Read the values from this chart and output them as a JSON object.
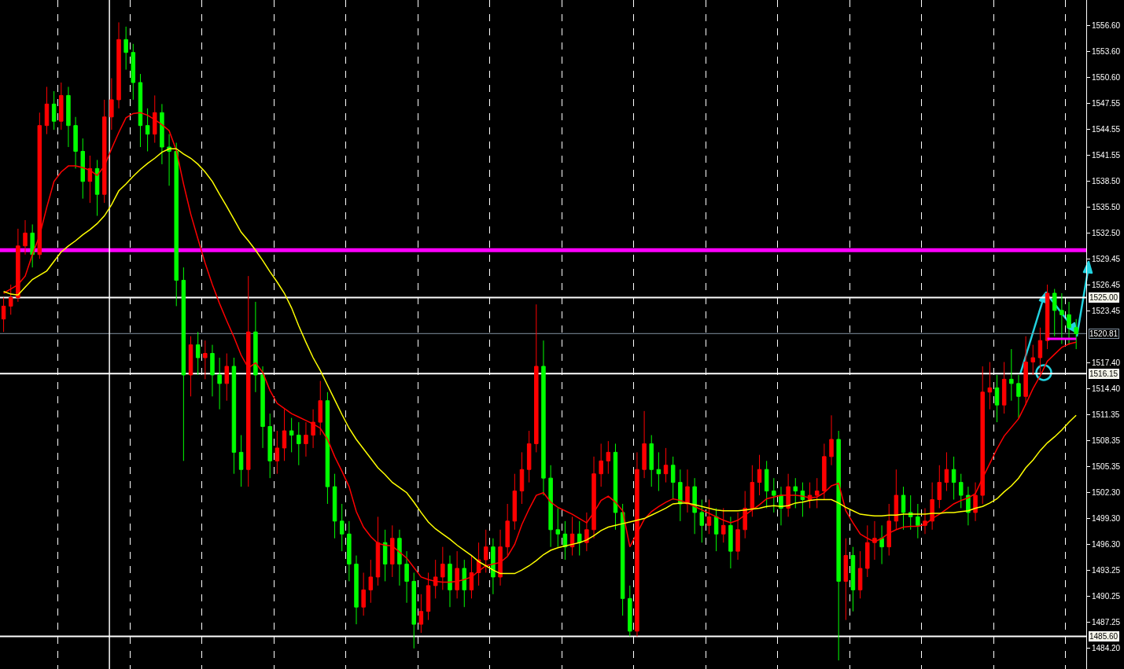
{
  "chart_data": {
    "type": "candlestick",
    "categories": [
      null,
      null,
      null,
      null,
      null,
      null,
      null,
      null,
      null,
      null,
      null,
      null,
      null,
      null,
      null,
      null,
      null,
      null,
      null,
      null,
      null,
      null,
      null,
      null,
      null,
      null,
      null,
      null,
      null,
      null,
      null,
      null,
      null,
      null,
      null,
      null,
      null,
      null,
      null,
      null,
      null,
      null,
      null,
      null,
      null,
      null,
      null,
      null,
      null,
      null,
      null,
      null,
      null,
      null,
      null,
      null,
      null,
      null,
      null,
      null,
      null,
      null,
      null,
      null,
      null,
      null,
      null,
      null,
      null,
      null,
      null,
      null,
      null,
      null,
      null,
      null,
      null,
      null,
      null,
      null,
      null,
      null,
      null,
      null,
      null,
      null,
      null,
      null,
      null,
      null,
      null,
      null,
      null,
      null,
      null,
      null,
      null,
      null,
      null,
      null,
      null,
      null,
      null,
      null,
      null,
      null,
      null,
      null,
      null,
      null,
      null,
      null,
      null,
      null,
      null,
      null,
      null,
      null,
      null,
      null,
      null,
      null,
      null,
      null,
      null,
      null,
      null,
      null,
      null,
      null,
      null,
      null,
      null,
      null,
      null,
      null,
      null,
      null,
      null,
      null,
      null,
      null,
      null,
      null,
      null,
      null,
      null,
      null,
      null,
      null
    ],
    "ohlc": [
      [
        1522.5,
        1525.0,
        1521.0,
        1524.0
      ],
      [
        1524.0,
        1526.5,
        1523.0,
        1525.0
      ],
      [
        1525.0,
        1533.0,
        1524.5,
        1531.0
      ],
      [
        1531.0,
        1534.0,
        1530.0,
        1532.5
      ],
      [
        1532.5,
        1533.5,
        1528.5,
        1530.0
      ],
      [
        1530.0,
        1546.5,
        1529.5,
        1545.0
      ],
      [
        1545.0,
        1549.5,
        1544.0,
        1547.5
      ],
      [
        1547.5,
        1549.0,
        1544.5,
        1545.5
      ],
      [
        1545.5,
        1550.0,
        1544.5,
        1548.5
      ],
      [
        1548.5,
        1549.5,
        1542.5,
        1545.0
      ],
      [
        1545.0,
        1546.0,
        1540.0,
        1542.0
      ],
      [
        1542.0,
        1543.5,
        1536.5,
        1538.5
      ],
      [
        1538.5,
        1541.5,
        1536.0,
        1540.0
      ],
      [
        1540.0,
        1541.0,
        1534.5,
        1537.0
      ],
      [
        1537.0,
        1548.0,
        1536.0,
        1546.0
      ],
      [
        1546.0,
        1550.5,
        1544.5,
        1548.0
      ],
      [
        1548.0,
        1557.0,
        1547.0,
        1555.0
      ],
      [
        1555.0,
        1556.5,
        1551.5,
        1553.5
      ],
      [
        1553.5,
        1554.5,
        1548.0,
        1550.0
      ],
      [
        1550.0,
        1551.0,
        1542.5,
        1545.0
      ],
      [
        1545.0,
        1547.0,
        1542.0,
        1544.0
      ],
      [
        1544.0,
        1548.5,
        1543.0,
        1546.5
      ],
      [
        1546.5,
        1547.5,
        1540.5,
        1542.5
      ],
      [
        1542.5,
        1544.0,
        1538.0,
        1542.0
      ],
      [
        1542.0,
        1543.0,
        1524.0,
        1527.0
      ],
      [
        1527.0,
        1528.5,
        1506.0,
        1516.0
      ],
      [
        1516.0,
        1520.5,
        1513.5,
        1519.5
      ],
      [
        1519.5,
        1521.0,
        1516.0,
        1518.0
      ],
      [
        1518.0,
        1520.0,
        1515.5,
        1518.5
      ],
      [
        1518.5,
        1519.5,
        1513.5,
        1516.0
      ],
      [
        1516.0,
        1518.0,
        1512.0,
        1515.0
      ],
      [
        1515.0,
        1518.5,
        1513.0,
        1517.0
      ],
      [
        1517.0,
        1518.0,
        1504.5,
        1507.0
      ],
      [
        1507.0,
        1509.0,
        1503.0,
        1505.0
      ],
      [
        1505.0,
        1527.5,
        1503.0,
        1521.0
      ],
      [
        1521.0,
        1524.5,
        1514.0,
        1516.0
      ],
      [
        1516.0,
        1517.0,
        1507.5,
        1510.0
      ],
      [
        1510.0,
        1511.5,
        1504.0,
        1506.0
      ],
      [
        1506.0,
        1509.5,
        1504.5,
        1507.5
      ],
      [
        1507.5,
        1512.0,
        1506.0,
        1509.5
      ],
      [
        1509.5,
        1511.0,
        1507.0,
        1509.0
      ],
      [
        1509.0,
        1510.5,
        1505.5,
        1508.0
      ],
      [
        1508.0,
        1510.5,
        1506.5,
        1509.0
      ],
      [
        1509.0,
        1512.0,
        1507.5,
        1510.5
      ],
      [
        1510.5,
        1515.3,
        1509.0,
        1513.0
      ],
      [
        1513.0,
        1514.0,
        1501.0,
        1503.0
      ],
      [
        1503.0,
        1504.5,
        1497.0,
        1499.0
      ],
      [
        1499.0,
        1501.0,
        1495.5,
        1497.5
      ],
      [
        1497.5,
        1499.0,
        1492.0,
        1494.0
      ],
      [
        1494.0,
        1495.0,
        1487.0,
        1489.0
      ],
      [
        1489.0,
        1493.0,
        1488.0,
        1491.0
      ],
      [
        1491.0,
        1494.5,
        1489.5,
        1492.5
      ],
      [
        1492.5,
        1499.5,
        1491.5,
        1496.5
      ],
      [
        1496.5,
        1498.0,
        1492.0,
        1494.0
      ],
      [
        1494.0,
        1498.5,
        1492.5,
        1497.0
      ],
      [
        1497.0,
        1498.0,
        1491.5,
        1494.0
      ],
      [
        1494.0,
        1495.5,
        1489.5,
        1492.0
      ],
      [
        1492.0,
        1493.0,
        1484.2,
        1487.0
      ],
      [
        1487.0,
        1490.5,
        1486.0,
        1488.5
      ],
      [
        1488.5,
        1493.0,
        1487.5,
        1491.5
      ],
      [
        1491.5,
        1494.5,
        1490.0,
        1492.5
      ],
      [
        1492.5,
        1496.0,
        1491.0,
        1494.0
      ],
      [
        1494.0,
        1495.0,
        1489.0,
        1491.0
      ],
      [
        1491.0,
        1495.5,
        1490.0,
        1493.5
      ],
      [
        1493.5,
        1494.5,
        1489.0,
        1491.0
      ],
      [
        1491.0,
        1495.0,
        1490.0,
        1493.0
      ],
      [
        1493.0,
        1496.5,
        1491.5,
        1494.5
      ],
      [
        1494.5,
        1498.0,
        1493.0,
        1496.0
      ],
      [
        1496.0,
        1497.0,
        1490.5,
        1492.5
      ],
      [
        1492.5,
        1498.0,
        1491.5,
        1496.0
      ],
      [
        1496.0,
        1501.0,
        1495.0,
        1499.0
      ],
      [
        1499.0,
        1504.5,
        1498.0,
        1502.5
      ],
      [
        1502.5,
        1507.0,
        1501.0,
        1505.0
      ],
      [
        1505.0,
        1509.5,
        1503.5,
        1508.0
      ],
      [
        1508.0,
        1524.2,
        1507.0,
        1517.0
      ],
      [
        1517.0,
        1520.0,
        1502.0,
        1504.0
      ],
      [
        1504.0,
        1505.5,
        1496.0,
        1498.0
      ],
      [
        1498.0,
        1500.5,
        1496.0,
        1497.5
      ],
      [
        1497.5,
        1499.0,
        1494.5,
        1496.0
      ],
      [
        1496.0,
        1499.5,
        1495.0,
        1497.5
      ],
      [
        1497.5,
        1499.0,
        1495.0,
        1496.5
      ],
      [
        1496.5,
        1500.0,
        1495.5,
        1498.0
      ],
      [
        1498.0,
        1506.5,
        1497.0,
        1504.5
      ],
      [
        1504.5,
        1508.0,
        1503.0,
        1506.0
      ],
      [
        1506.0,
        1508.3,
        1504.5,
        1507.0
      ],
      [
        1507.0,
        1508.0,
        1498.0,
        1500.0
      ],
      [
        1500.0,
        1501.0,
        1488.0,
        1490.0
      ],
      [
        1490.0,
        1491.5,
        1485.6,
        1486.2
      ],
      [
        1486.2,
        1507.0,
        1485.6,
        1505.0
      ],
      [
        1505.0,
        1511.8,
        1504.0,
        1508.0
      ],
      [
        1508.0,
        1509.0,
        1503.0,
        1505.0
      ],
      [
        1505.0,
        1507.0,
        1502.5,
        1504.5
      ],
      [
        1504.5,
        1507.5,
        1503.5,
        1505.5
      ],
      [
        1505.5,
        1506.5,
        1501.5,
        1503.5
      ],
      [
        1503.5,
        1505.0,
        1499.0,
        1501.0
      ],
      [
        1501.0,
        1505.0,
        1500.0,
        1503.0
      ],
      [
        1503.0,
        1504.0,
        1497.5,
        1500.0
      ],
      [
        1500.0,
        1501.5,
        1496.5,
        1498.5
      ],
      [
        1498.5,
        1501.5,
        1497.5,
        1499.5
      ],
      [
        1499.5,
        1500.5,
        1495.5,
        1497.5
      ],
      [
        1497.5,
        1500.5,
        1496.5,
        1498.5
      ],
      [
        1498.5,
        1499.5,
        1493.5,
        1495.5
      ],
      [
        1495.5,
        1500.0,
        1494.5,
        1498.0
      ],
      [
        1498.0,
        1502.5,
        1497.0,
        1500.5
      ],
      [
        1500.5,
        1505.5,
        1499.5,
        1503.5
      ],
      [
        1503.5,
        1506.7,
        1502.0,
        1505.0
      ],
      [
        1505.0,
        1506.0,
        1500.5,
        1502.5
      ],
      [
        1502.5,
        1504.0,
        1500.0,
        1502.0
      ],
      [
        1502.0,
        1503.0,
        1498.5,
        1500.5
      ],
      [
        1500.5,
        1504.5,
        1499.5,
        1503.0
      ],
      [
        1503.0,
        1504.0,
        1500.5,
        1502.5
      ],
      [
        1502.5,
        1503.5,
        1499.5,
        1501.5
      ],
      [
        1501.5,
        1503.5,
        1500.5,
        1502.0
      ],
      [
        1502.0,
        1504.0,
        1500.5,
        1502.5
      ],
      [
        1502.5,
        1508.0,
        1501.5,
        1506.5
      ],
      [
        1506.5,
        1511.3,
        1505.5,
        1508.5
      ],
      [
        1508.5,
        1509.5,
        1482.8,
        1492.0
      ],
      [
        1492.0,
        1497.0,
        1487.5,
        1495.0
      ],
      [
        1495.0,
        1496.0,
        1488.5,
        1491.0
      ],
      [
        1491.0,
        1495.5,
        1490.0,
        1493.5
      ],
      [
        1493.5,
        1498.5,
        1492.5,
        1496.5
      ],
      [
        1496.5,
        1499.0,
        1494.5,
        1497.0
      ],
      [
        1497.0,
        1498.5,
        1494.0,
        1496.0
      ],
      [
        1496.0,
        1501.0,
        1495.0,
        1499.0
      ],
      [
        1499.0,
        1505.0,
        1498.0,
        1502.0
      ],
      [
        1502.0,
        1503.0,
        1498.0,
        1500.0
      ],
      [
        1500.0,
        1502.0,
        1498.0,
        1499.5
      ],
      [
        1499.5,
        1501.0,
        1497.0,
        1498.5
      ],
      [
        1498.5,
        1500.5,
        1497.5,
        1499.0
      ],
      [
        1499.0,
        1503.5,
        1498.0,
        1501.5
      ],
      [
        1501.5,
        1505.5,
        1500.5,
        1503.5
      ],
      [
        1503.5,
        1507.0,
        1502.5,
        1505.0
      ],
      [
        1505.0,
        1506.5,
        1501.5,
        1503.5
      ],
      [
        1503.5,
        1504.5,
        1500.5,
        1502.0
      ],
      [
        1502.0,
        1503.0,
        1498.5,
        1500.0
      ],
      [
        1500.0,
        1503.5,
        1499.0,
        1502.0
      ],
      [
        1502.0,
        1517.0,
        1501.0,
        1514.0
      ],
      [
        1514.0,
        1517.5,
        1512.0,
        1514.5
      ],
      [
        1514.5,
        1516.0,
        1510.5,
        1512.5
      ],
      [
        1512.5,
        1517.5,
        1511.5,
        1515.5
      ],
      [
        1515.5,
        1519.0,
        1513.0,
        1515.0
      ],
      [
        1515.0,
        1516.0,
        1511.0,
        1513.5
      ],
      [
        1513.5,
        1520.5,
        1512.5,
        1517.5
      ],
      [
        1517.5,
        1519.5,
        1516.0,
        1518.0
      ],
      [
        1518.0,
        1521.5,
        1516.2,
        1520.0
      ],
      [
        1520.0,
        1526.5,
        1519.0,
        1525.5
      ],
      [
        1525.5,
        1526.0,
        1520.5,
        1523.5
      ],
      [
        1523.5,
        1525.5,
        1519.6,
        1523.0
      ],
      [
        1523.0,
        1524.5,
        1519.5,
        1521.5
      ],
      [
        1521.5,
        1522.5,
        1519.0,
        1520.8
      ]
    ],
    "colors": [
      "#ff0000",
      "#ff0000",
      "#ff0000",
      "#ff0000",
      "#00ff00",
      "#ff0000",
      "#ff0000",
      "#00ff00",
      "#ff0000",
      "#00ff00",
      "#00ff00",
      "#00ff00",
      "#ff0000",
      "#00ff00",
      "#ff0000",
      "#ff0000",
      "#ff0000",
      "#00ff00",
      "#00ff00",
      "#00ff00",
      "#00ff00",
      "#ff0000",
      "#00ff00",
      "#00ff00",
      "#00ff00",
      "#00ff00",
      "#ff0000",
      "#00ff00",
      "#ff0000",
      "#00ff00",
      "#00ff00",
      "#ff0000",
      "#00ff00",
      "#00ff00",
      "#ff0000",
      "#00ff00",
      "#00ff00",
      "#00ff00",
      "#ff0000",
      "#ff0000",
      "#00ff00",
      "#00ff00",
      "#ff0000",
      "#ff0000",
      "#ff0000",
      "#00ff00",
      "#00ff00",
      "#00ff00",
      "#00ff00",
      "#00ff00",
      "#ff0000",
      "#ff0000",
      "#ff0000",
      "#00ff00",
      "#ff0000",
      "#00ff00",
      "#00ff00",
      "#00ff00",
      "#ff0000",
      "#ff0000",
      "#ff0000",
      "#ff0000",
      "#00ff00",
      "#ff0000",
      "#00ff00",
      "#ff0000",
      "#ff0000",
      "#ff0000",
      "#00ff00",
      "#ff0000",
      "#ff0000",
      "#ff0000",
      "#ff0000",
      "#ff0000",
      "#ff0000",
      "#00ff00",
      "#00ff00",
      "#00ff00",
      "#00ff00",
      "#ff0000",
      "#00ff00",
      "#ff0000",
      "#ff0000",
      "#ff0000",
      "#ff0000",
      "#00ff00",
      "#00ff00",
      "#00ff00",
      "#ff0000",
      "#ff0000",
      "#00ff00",
      "#00ff00",
      "#ff0000",
      "#00ff00",
      "#00ff00",
      "#ff0000",
      "#00ff00",
      "#00ff00",
      "#ff0000",
      "#00ff00",
      "#ff0000",
      "#00ff00",
      "#ff0000",
      "#ff0000",
      "#ff0000",
      "#ff0000",
      "#00ff00",
      "#00ff00",
      "#00ff00",
      "#ff0000",
      "#00ff00",
      "#00ff00",
      "#ff0000",
      "#ff0000",
      "#ff0000",
      "#ff0000",
      "#00ff00",
      "#ff0000",
      "#00ff00",
      "#ff0000",
      "#ff0000",
      "#ff0000",
      "#00ff00",
      "#ff0000",
      "#ff0000",
      "#00ff00",
      "#00ff00",
      "#00ff00",
      "#ff0000",
      "#ff0000",
      "#ff0000",
      "#ff0000",
      "#00ff00",
      "#00ff00",
      "#00ff00",
      "#ff0000",
      "#ff0000",
      "#ff0000",
      "#00ff00",
      "#ff0000",
      "#00ff00",
      "#00ff00",
      "#ff0000",
      "#ff0000",
      "#ff0000",
      "#ff0000",
      "#00ff00",
      "#00ff00",
      "#00ff00",
      "#00ff00"
    ],
    "series": [
      {
        "type": "line",
        "color": "#ff0000",
        "values": [
          1525.5,
          1526.0,
          1526.5,
          1527.5,
          1530.0,
          1532.2,
          1535.5,
          1538.5,
          1539.6,
          1540.3,
          1540.3,
          1540.1,
          1539.8,
          1539.2,
          1540.3,
          1542.3,
          1544.2,
          1545.9,
          1546.4,
          1546.5,
          1546.2,
          1545.7,
          1545.1,
          1544.4,
          1542.1,
          1538.2,
          1534.7,
          1531.8,
          1529.0,
          1526.5,
          1524.3,
          1522.3,
          1520.4,
          1518.3,
          1516.8,
          1517.4,
          1516.3,
          1514.2,
          1512.7,
          1512.1,
          1511.5,
          1511.1,
          1510.7,
          1510.3,
          1509.8,
          1508.5,
          1506.5,
          1504.8,
          1503.0,
          1500.1,
          1498.3,
          1497.2,
          1496.4,
          1496.2,
          1496.1,
          1495.4,
          1494.7,
          1493.6,
          1492.5,
          1492.2,
          1492.0,
          1491.9,
          1491.9,
          1492.0,
          1492.2,
          1492.5,
          1493.2,
          1493.8,
          1494.0,
          1494.2,
          1494.9,
          1496.3,
          1498.6,
          1500.4,
          1502.0,
          1502.3,
          1501.2,
          1500.6,
          1500.2,
          1499.8,
          1499.3,
          1498.8,
          1500.0,
          1501.4,
          1501.9,
          1501.2,
          1500.2,
          1496.0,
          1497.6,
          1499.2,
          1500.1,
          1500.7,
          1501.2,
          1501.6,
          1501.4,
          1501.1,
          1500.7,
          1500.3,
          1499.9,
          1499.5,
          1499.1,
          1498.8,
          1499.1,
          1499.7,
          1500.3,
          1500.9,
          1501.6,
          1501.8,
          1502.0,
          1502.0,
          1502.0,
          1501.9,
          1501.7,
          1501.8,
          1502.3,
          1503.1,
          1503.4,
          1500.2,
          1498.8,
          1497.5,
          1497.0,
          1496.6,
          1497.0,
          1497.6,
          1498.0,
          1498.3,
          1498.4,
          1498.4,
          1498.6,
          1499.3,
          1499.8,
          1500.4,
          1501.0,
          1501.4,
          1501.7,
          1502.2,
          1504.0,
          1505.7,
          1507.4,
          1508.9,
          1509.9,
          1510.9,
          1512.6,
          1514.4,
          1515.9,
          1517.6,
          1518.4,
          1519.2,
          1519.6,
          1519.8
        ]
      },
      {
        "type": "line",
        "color": "#ffff00",
        "values": [
          1525.7,
          1525.4,
          1525.3,
          1526.2,
          1527.1,
          1527.6,
          1528.1,
          1529.2,
          1530.3,
          1531.0,
          1531.6,
          1532.3,
          1532.9,
          1533.6,
          1534.5,
          1535.8,
          1537.4,
          1538.2,
          1539.1,
          1539.9,
          1540.6,
          1541.2,
          1541.9,
          1542.3,
          1542.3,
          1541.7,
          1541.2,
          1540.5,
          1539.6,
          1538.5,
          1537.0,
          1535.6,
          1534.1,
          1532.6,
          1531.6,
          1530.5,
          1529.3,
          1528.0,
          1526.8,
          1525.5,
          1523.8,
          1521.7,
          1519.8,
          1518.0,
          1516.5,
          1514.8,
          1513.1,
          1511.4,
          1509.8,
          1508.5,
          1507.4,
          1506.3,
          1505.2,
          1504.4,
          1503.5,
          1502.9,
          1502.3,
          1501.2,
          1500.0,
          1498.9,
          1498.1,
          1497.5,
          1496.9,
          1496.2,
          1495.6,
          1495.0,
          1494.3,
          1493.8,
          1493.3,
          1492.9,
          1492.9,
          1492.9,
          1493.3,
          1493.8,
          1494.4,
          1495.1,
          1495.6,
          1495.9,
          1496.1,
          1496.3,
          1496.5,
          1496.8,
          1497.3,
          1497.9,
          1498.3,
          1498.5,
          1498.7,
          1498.9,
          1499.1,
          1499.3,
          1499.7,
          1500.1,
          1500.5,
          1501.0,
          1501.1,
          1501.1,
          1500.9,
          1500.7,
          1500.5,
          1500.3,
          1500.2,
          1500.2,
          1500.2,
          1500.3,
          1500.4,
          1500.5,
          1500.7,
          1500.8,
          1500.7,
          1500.8,
          1501.1,
          1501.2,
          1501.4,
          1501.5,
          1501.5,
          1501.5,
          1501.1,
          1500.6,
          1500.2,
          1499.8,
          1499.7,
          1499.6,
          1499.6,
          1499.7,
          1499.7,
          1499.8,
          1499.8,
          1499.8,
          1499.8,
          1499.9,
          1499.9,
          1500.0,
          1500.0,
          1500.1,
          1500.2,
          1500.5,
          1500.7,
          1501.1,
          1501.6,
          1502.4,
          1503.1,
          1504.0,
          1505.2,
          1506.1,
          1507.2,
          1508.1,
          1508.8,
          1509.6,
          1510.5,
          1511.3
        ]
      },
      {
        "type": "line",
        "color": "#ff00ff",
        "values": [
          null,
          null,
          null,
          null,
          null,
          null,
          null,
          null,
          null,
          null,
          null,
          null,
          null,
          null,
          null,
          null,
          null,
          null,
          null,
          null,
          null,
          null,
          null,
          null,
          null,
          null,
          null,
          null,
          null,
          null,
          null,
          null,
          null,
          null,
          null,
          null,
          null,
          null,
          null,
          null,
          null,
          null,
          null,
          null,
          null,
          null,
          null,
          null,
          null,
          null,
          null,
          null,
          null,
          null,
          null,
          null,
          null,
          null,
          null,
          null,
          null,
          null,
          null,
          null,
          null,
          null,
          null,
          null,
          null,
          null,
          null,
          null,
          null,
          null,
          null,
          null,
          null,
          null,
          null,
          null,
          null,
          null,
          null,
          null,
          null,
          null,
          null,
          null,
          null,
          null,
          null,
          null,
          null,
          null,
          null,
          null,
          null,
          null,
          null,
          null,
          null,
          null,
          null,
          null,
          null,
          null,
          null,
          null,
          null,
          null,
          null,
          null,
          null,
          null,
          null,
          null,
          null,
          null,
          null,
          null,
          null,
          null,
          null,
          null,
          null,
          null,
          null,
          null,
          null,
          null,
          null,
          null,
          null,
          null,
          null,
          null,
          null,
          null,
          null,
          null,
          null,
          null,
          null,
          null,
          null,
          1520.2,
          1520.2,
          1520.2,
          1520.2,
          1520.2
        ]
      }
    ],
    "ylim": [
      1481.8,
      1559.6
    ],
    "yticks": [
      {
        "value": 1484.2,
        "label": "1484.20"
      },
      1487.25,
      1490.25,
      1493.25,
      {
        "value": 1496.3,
        "label": "1496.30"
      },
      {
        "value": 1499.3,
        "label": "1499.30"
      },
      {
        "value": 1502.3,
        "label": "1502.30"
      },
      1505.35,
      1508.35,
      1511.35,
      {
        "value": 1514.4,
        "label": "1514.40"
      },
      {
        "value": 1517.4,
        "label": "1517.40"
      },
      1523.45,
      1526.45,
      1529.45,
      {
        "value": 1532.5,
        "label": "1532.50"
      },
      {
        "value": 1535.5,
        "label": "1535.50"
      },
      {
        "value": 1538.5,
        "label": "1538.50"
      },
      1541.55,
      1544.55,
      1547.55,
      {
        "value": 1550.6,
        "label": "1550.60"
      },
      {
        "value": 1553.6,
        "label": "1553.60"
      },
      {
        "value": 1556.6,
        "label": "1556.60"
      }
    ],
    "ref_lines": [
      {
        "axis": "y",
        "value": 1530.5,
        "color": "#ff00ff"
      },
      {
        "axis": "y",
        "value": 1525.0,
        "label": "1525.00",
        "color": "#ffffff"
      },
      {
        "axis": "y",
        "value": 1520.81,
        "label": "1520.81",
        "color": "#8090a0"
      },
      {
        "axis": "y",
        "value": 1516.15,
        "label": "1516.15",
        "color": "#ffffff"
      },
      {
        "axis": "y",
        "value": 1485.6,
        "label": "1485.60",
        "color": "#ffffff"
      }
    ],
    "grid": "x",
    "tick_labels": "y"
  }
}
